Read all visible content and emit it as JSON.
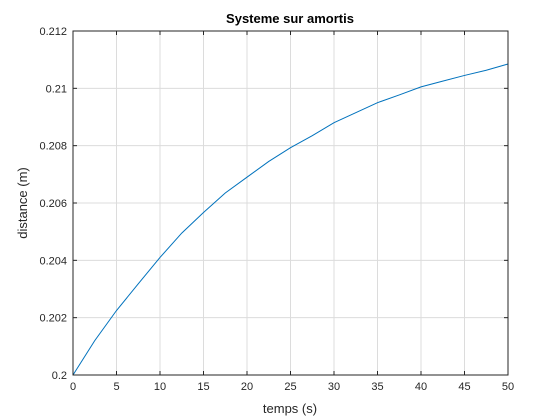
{
  "chart_data": {
    "type": "line",
    "title": "Systeme sur amortis",
    "xlabel": "temps (s)",
    "ylabel": "distance (m)",
    "xlim": [
      0,
      50
    ],
    "ylim": [
      0.2,
      0.212
    ],
    "xticks": [
      0,
      5,
      10,
      15,
      20,
      25,
      30,
      35,
      40,
      45,
      50
    ],
    "xtick_labels": [
      "0",
      "5",
      "10",
      "15",
      "20",
      "25",
      "30",
      "35",
      "40",
      "45",
      "50"
    ],
    "yticks": [
      0.2,
      0.202,
      0.204,
      0.206,
      0.208,
      0.21,
      0.212
    ],
    "ytick_labels": [
      "0.2",
      "0.202",
      "0.204",
      "0.206",
      "0.208",
      "0.21",
      "0.212"
    ],
    "grid": true,
    "colors": {
      "line": "#0072bd",
      "axis": "#262626",
      "grid": "#dcdcdc"
    },
    "series": [
      {
        "x": [
          0,
          2.5,
          5,
          7.5,
          10,
          12.5,
          15,
          17.5,
          20,
          22.5,
          25,
          27.5,
          30,
          32.5,
          35,
          37.5,
          40,
          42.5,
          45,
          47.5,
          50
        ],
        "y": [
          0.2,
          0.2012,
          0.20225,
          0.20318,
          0.2041,
          0.20495,
          0.20567,
          0.20635,
          0.2069,
          0.20745,
          0.20793,
          0.20835,
          0.2088,
          0.20915,
          0.2095,
          0.20977,
          0.21005,
          0.21025,
          0.21045,
          0.21063,
          0.21085
        ]
      }
    ]
  }
}
